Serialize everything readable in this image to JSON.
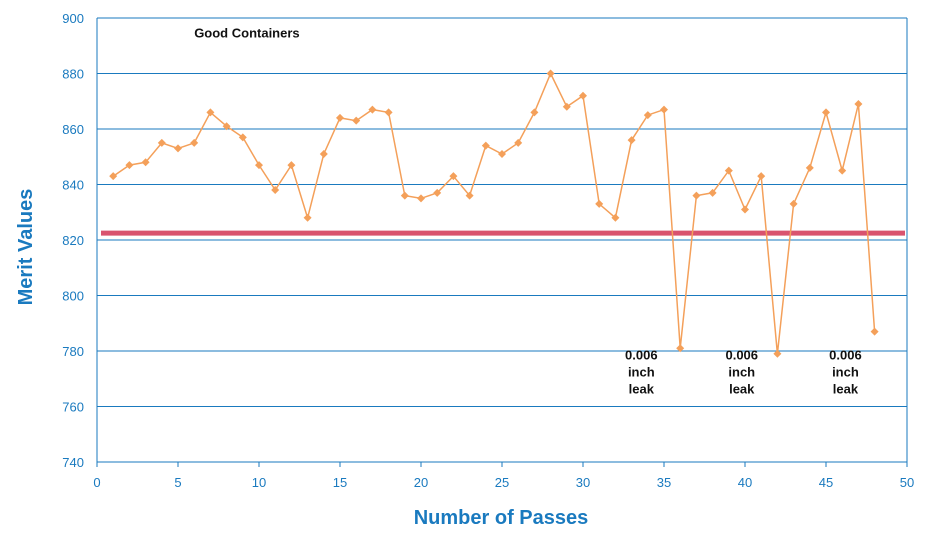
{
  "chart_data": {
    "type": "line",
    "title": "",
    "xlabel": "Number of Passes",
    "ylabel": "Merit Values",
    "xlim": [
      0,
      50
    ],
    "ylim": [
      740,
      900
    ],
    "xticks": [
      0,
      5,
      10,
      15,
      20,
      25,
      30,
      35,
      40,
      45,
      50
    ],
    "yticks": [
      740,
      760,
      780,
      800,
      820,
      840,
      860,
      880,
      900
    ],
    "grid": "horizontal",
    "colors": {
      "series": "#f4a05a",
      "threshold": "#d9536f",
      "grid": "#1a7abf",
      "text": "#1a7abf"
    },
    "series": [
      {
        "name": "",
        "x": [
          1,
          2,
          3,
          4,
          5,
          6,
          7,
          8,
          9,
          10,
          11,
          12,
          13,
          14,
          15,
          16,
          17,
          18,
          19,
          20,
          21,
          22,
          23,
          24,
          25,
          26,
          27,
          28,
          29,
          30,
          31,
          32,
          33,
          34,
          35,
          36,
          37,
          38,
          39,
          40,
          41,
          42,
          43,
          44,
          45,
          46,
          47,
          48
        ],
        "y": [
          843,
          847,
          848,
          855,
          853,
          855,
          866,
          861,
          857,
          847,
          838,
          847,
          828,
          851,
          864,
          863,
          867,
          866,
          836,
          835,
          837,
          843,
          836,
          854,
          851,
          855,
          866,
          880,
          868,
          872,
          833,
          828,
          856,
          865,
          867,
          781,
          836,
          837,
          845,
          831,
          843,
          779,
          833,
          846,
          866,
          845,
          869,
          787
        ]
      }
    ],
    "threshold": {
      "y": 822.5
    },
    "annotations": [
      {
        "text": "Good Containers",
        "x": 6,
        "y": 893
      },
      {
        "lines": [
          "0.006",
          "inch",
          "leak"
        ],
        "x": 33.6,
        "y": 777
      },
      {
        "lines": [
          "0.006",
          "inch",
          "leak"
        ],
        "x": 39.8,
        "y": 777
      },
      {
        "lines": [
          "0.006",
          "inch",
          "leak"
        ],
        "x": 46.2,
        "y": 777
      }
    ]
  }
}
